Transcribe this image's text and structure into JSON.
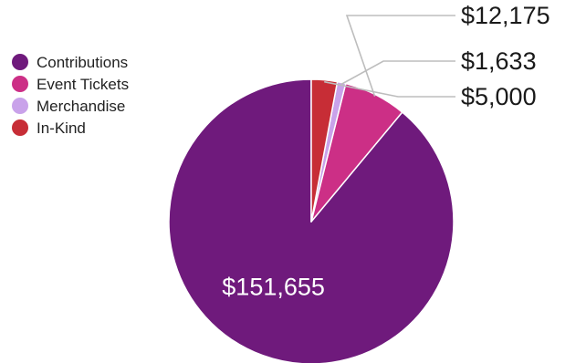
{
  "chart_data": {
    "type": "pie",
    "title": "",
    "legend_position": "top-left",
    "slices": [
      {
        "name": "Contributions",
        "value": 151655,
        "label": "$151,655",
        "color": "#6f1a7c",
        "label_placement": "inside"
      },
      {
        "name": "Event Tickets",
        "value": 12175,
        "label": "$12,175",
        "color": "#cc2f86",
        "label_placement": "callout"
      },
      {
        "name": "Merchandise",
        "value": 1633,
        "label": "$1,633",
        "color": "#c9a2ea",
        "label_placement": "callout"
      },
      {
        "name": "In-Kind",
        "value": 5000,
        "label": "$5,000",
        "color": "#c72d36",
        "label_placement": "callout"
      }
    ]
  }
}
